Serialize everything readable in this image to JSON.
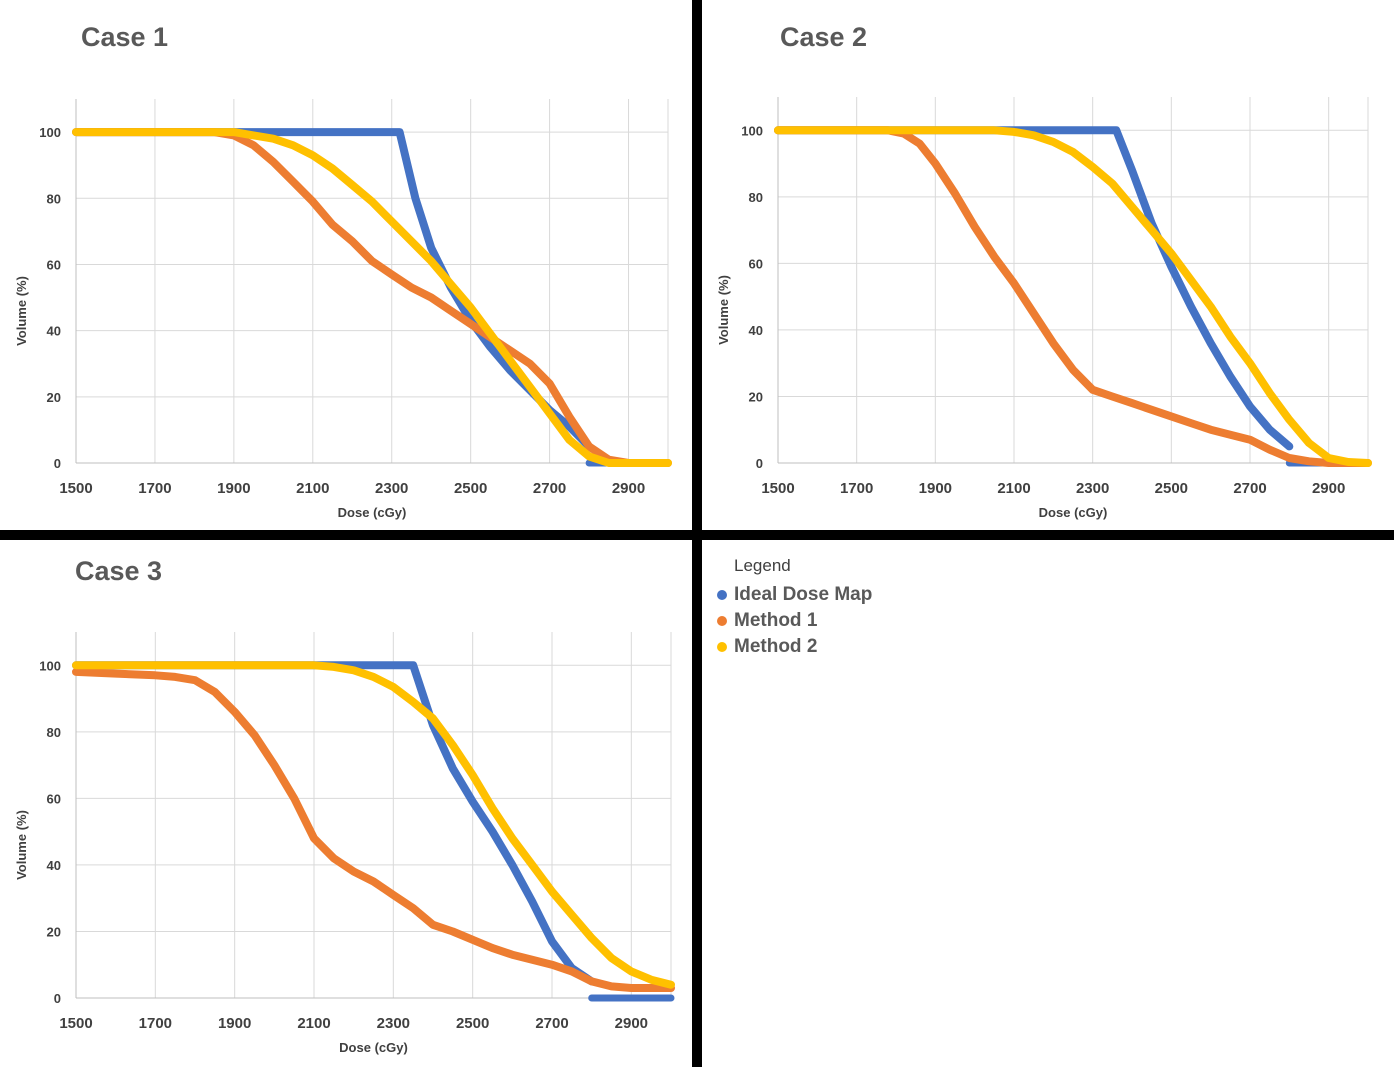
{
  "legend": {
    "title": "Legend",
    "items": [
      {
        "label": "Ideal Dose Map",
        "color": "#4472C4"
      },
      {
        "label": "Method 1",
        "color": "#ED7D31"
      },
      {
        "label": "Method 2",
        "color": "#FFC000"
      }
    ]
  },
  "chart_data": [
    {
      "type": "line",
      "title": "Case 1",
      "xlabel": "Dose (cGy)",
      "ylabel": "Volume (%)",
      "xlim": [
        1500,
        3000
      ],
      "ylim": [
        0,
        110
      ],
      "xticks": [
        1500,
        1700,
        1900,
        2100,
        2300,
        2500,
        2700,
        2900
      ],
      "yticks": [
        0,
        20,
        40,
        60,
        80,
        100
      ],
      "grid": true,
      "series": [
        {
          "name": "Ideal Dose Map",
          "color": "#4472C4",
          "x": [
            1500,
            2000,
            2320,
            2360,
            2400,
            2450,
            2500,
            2550,
            2600,
            2650,
            2700,
            2750,
            2800
          ],
          "y": [
            100,
            100,
            100,
            80,
            65,
            53,
            43,
            35,
            28,
            22,
            16,
            11,
            5
          ],
          "tail": {
            "x": [
              2800,
              3000
            ],
            "y": [
              0,
              0
            ]
          }
        },
        {
          "name": "Method 1",
          "color": "#ED7D31",
          "x": [
            1500,
            1850,
            1900,
            1950,
            2000,
            2050,
            2100,
            2150,
            2200,
            2250,
            2300,
            2350,
            2400,
            2450,
            2500,
            2550,
            2600,
            2650,
            2700,
            2750,
            2800,
            2850,
            2900,
            3000
          ],
          "y": [
            100,
            100,
            99,
            96,
            91,
            85,
            79,
            72,
            67,
            61,
            57,
            53,
            50,
            46,
            42,
            38,
            34,
            30,
            24,
            14,
            5,
            1,
            0,
            0
          ]
        },
        {
          "name": "Method 2",
          "color": "#FFC000",
          "x": [
            1500,
            1900,
            1950,
            2000,
            2050,
            2100,
            2150,
            2200,
            2250,
            2300,
            2350,
            2400,
            2450,
            2500,
            2550,
            2600,
            2650,
            2700,
            2750,
            2800,
            2850,
            2900,
            3000
          ],
          "y": [
            100,
            100,
            99,
            98,
            96,
            93,
            89,
            84,
            79,
            73,
            67,
            61,
            54,
            47,
            39,
            31,
            23,
            15,
            7,
            2,
            0,
            0,
            0
          ]
        }
      ]
    },
    {
      "type": "line",
      "title": "Case 2",
      "xlabel": "Dose (cGy)",
      "ylabel": "Volume (%)",
      "xlim": [
        1500,
        3000
      ],
      "ylim": [
        0,
        110
      ],
      "xticks": [
        1500,
        1700,
        1900,
        2100,
        2300,
        2500,
        2700,
        2900
      ],
      "yticks": [
        0,
        20,
        40,
        60,
        80,
        100
      ],
      "grid": true,
      "series": [
        {
          "name": "Ideal Dose Map",
          "color": "#4472C4",
          "x": [
            1500,
            2000,
            2360,
            2400,
            2450,
            2500,
            2550,
            2600,
            2650,
            2700,
            2750,
            2800
          ],
          "y": [
            100,
            100,
            100,
            88,
            72,
            59,
            47,
            36,
            26,
            17,
            10,
            5
          ],
          "tail": {
            "x": [
              2800,
              3000
            ],
            "y": [
              0,
              0
            ]
          }
        },
        {
          "name": "Method 1",
          "color": "#ED7D31",
          "x": [
            1500,
            1780,
            1820,
            1860,
            1900,
            1950,
            2000,
            2050,
            2100,
            2150,
            2200,
            2250,
            2300,
            2350,
            2400,
            2450,
            2500,
            2550,
            2600,
            2650,
            2700,
            2750,
            2800,
            2850,
            2900,
            3000
          ],
          "y": [
            100,
            100,
            99,
            96,
            90,
            81,
            71,
            62,
            54,
            45,
            36,
            28,
            22,
            20,
            18,
            16,
            14,
            12,
            10,
            8.5,
            7,
            4,
            1.5,
            0.5,
            0,
            0
          ]
        },
        {
          "name": "Method 2",
          "color": "#FFC000",
          "x": [
            1500,
            2050,
            2100,
            2150,
            2200,
            2250,
            2300,
            2350,
            2400,
            2450,
            2500,
            2550,
            2600,
            2650,
            2700,
            2750,
            2800,
            2850,
            2900,
            2950,
            3000
          ],
          "y": [
            100,
            100,
            99.5,
            98.5,
            96.5,
            93.5,
            89,
            84,
            77,
            70,
            63,
            55,
            47,
            38,
            30,
            21,
            13,
            6,
            1.5,
            0.3,
            0
          ]
        }
      ]
    },
    {
      "type": "line",
      "title": "Case 3",
      "xlabel": "Dose (cGy)",
      "ylabel": "Volume (%)",
      "xlim": [
        1500,
        3000
      ],
      "ylim": [
        0,
        110
      ],
      "xticks": [
        1500,
        1700,
        1900,
        2100,
        2300,
        2500,
        2700,
        2900
      ],
      "yticks": [
        0,
        20,
        40,
        60,
        80,
        100
      ],
      "grid": true,
      "series": [
        {
          "name": "Ideal Dose Map",
          "color": "#4472C4",
          "x": [
            1500,
            2000,
            2350,
            2400,
            2450,
            2500,
            2550,
            2600,
            2650,
            2700,
            2750,
            2800
          ],
          "y": [
            100,
            100,
            100,
            82,
            69,
            59,
            50,
            40,
            29,
            17,
            9,
            5
          ],
          "tail": {
            "x": [
              2800,
              3000
            ],
            "y": [
              0,
              0
            ]
          }
        },
        {
          "name": "Method 1",
          "color": "#ED7D31",
          "x": [
            1500,
            1600,
            1700,
            1750,
            1800,
            1850,
            1900,
            1950,
            2000,
            2050,
            2100,
            2150,
            2200,
            2250,
            2300,
            2350,
            2400,
            2450,
            2500,
            2550,
            2600,
            2650,
            2700,
            2750,
            2800,
            2850,
            2900,
            3000
          ],
          "y": [
            98,
            97.5,
            97,
            96.5,
            95.5,
            92,
            86,
            79,
            70,
            60,
            48,
            42,
            38,
            35,
            31,
            27,
            22,
            20,
            17.5,
            15,
            13,
            11.5,
            10,
            8,
            5,
            3.5,
            3,
            3
          ]
        },
        {
          "name": "Method 2",
          "color": "#FFC000",
          "x": [
            1500,
            2100,
            2150,
            2200,
            2250,
            2300,
            2350,
            2400,
            2450,
            2500,
            2550,
            2600,
            2650,
            2700,
            2750,
            2800,
            2850,
            2900,
            2950,
            3000
          ],
          "y": [
            100,
            100,
            99.5,
            98.5,
            96.5,
            93.5,
            89,
            84,
            76,
            67,
            57,
            48,
            40,
            32,
            25,
            18,
            12,
            8,
            5.5,
            4
          ]
        }
      ]
    }
  ]
}
